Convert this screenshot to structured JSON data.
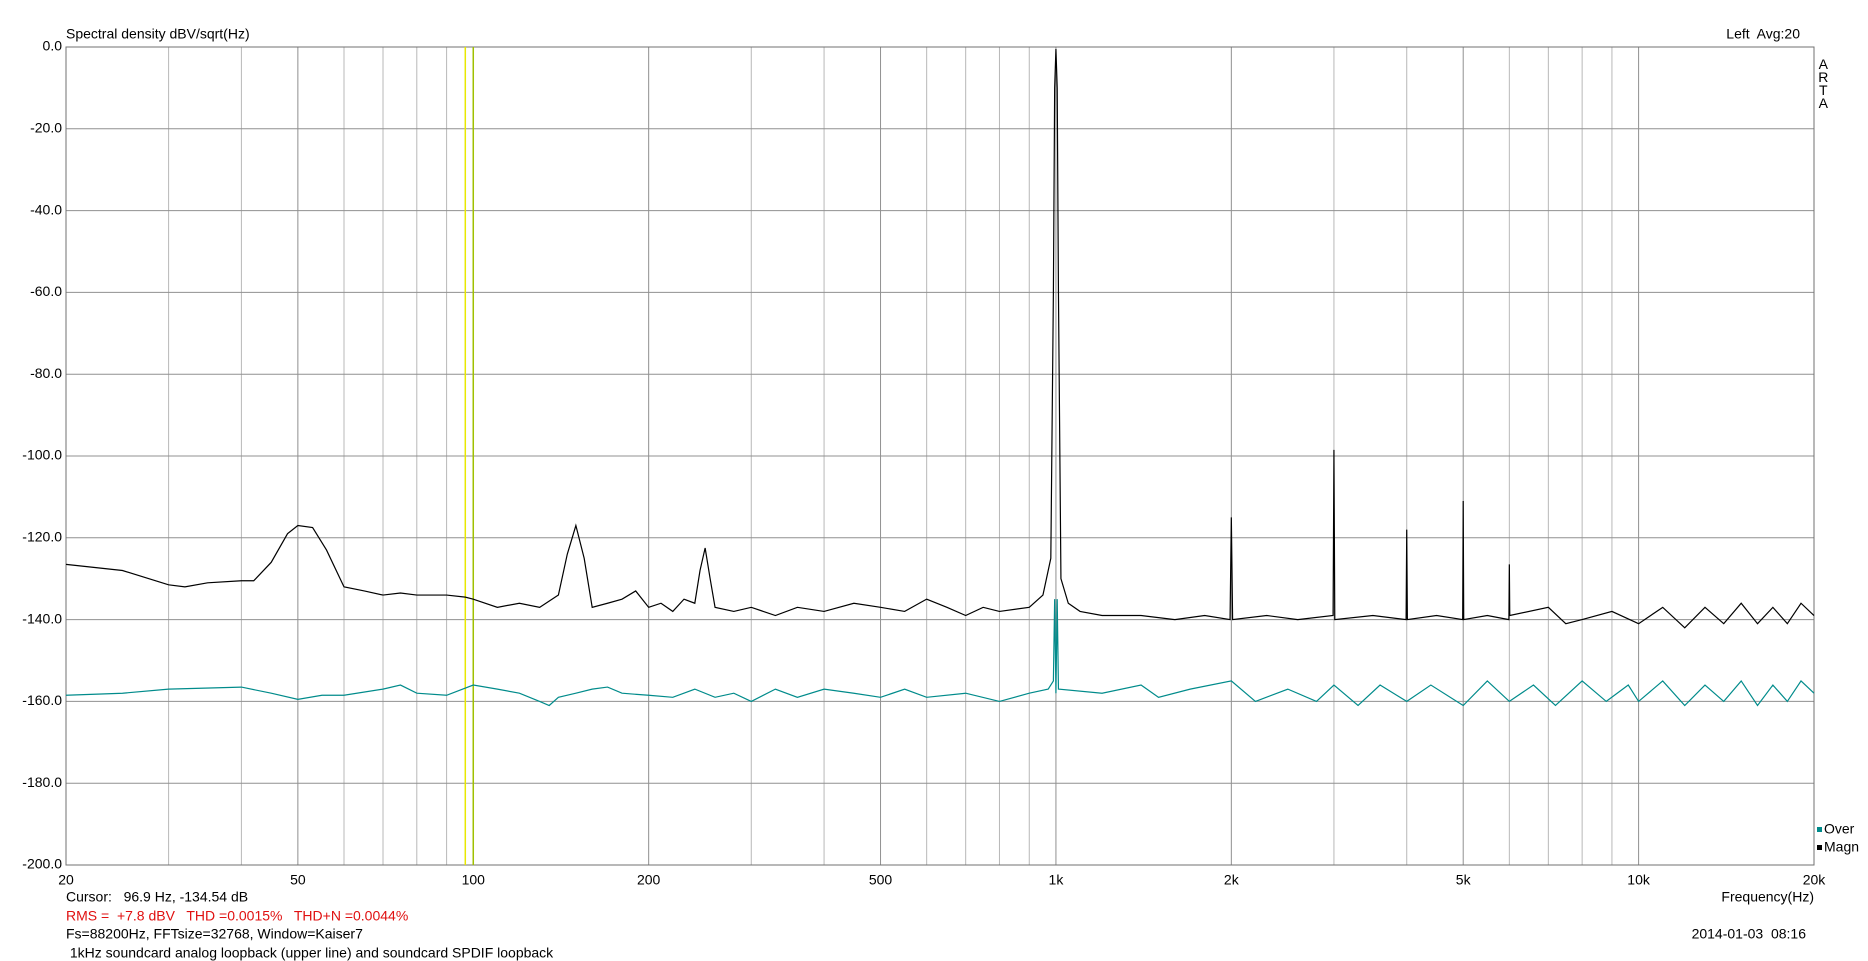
{
  "chart_data": {
    "type": "line",
    "title": "Spectral density dBV/sqrt(Hz)",
    "top_right": "Left  Avg:20",
    "brand": "ARTA",
    "x_label": "Frequency(Hz)",
    "log_x": true,
    "grid": true,
    "legend": "lower-right",
    "xlim": [
      20,
      20000
    ],
    "ylim": [
      -200,
      0
    ],
    "xticks": [
      20,
      50,
      100,
      200,
      500,
      {
        "value": 1000,
        "label": "1k"
      },
      {
        "value": 2000,
        "label": "2k"
      },
      {
        "value": 5000,
        "label": "5k"
      },
      {
        "value": 10000,
        "label": "10k"
      },
      {
        "value": 20000,
        "label": "20k"
      }
    ],
    "xgrid_minor": [
      30,
      40,
      60,
      70,
      80,
      90,
      300,
      400,
      600,
      700,
      800,
      900,
      3000,
      4000,
      6000,
      7000,
      8000,
      9000
    ],
    "yticks": [
      {
        "value": 0,
        "label": "0.0"
      },
      {
        "value": -20,
        "label": "-20.0"
      },
      {
        "value": -40,
        "label": "-40.0"
      },
      {
        "value": -60,
        "label": "-60.0"
      },
      {
        "value": -80,
        "label": "-80.0"
      },
      {
        "value": -100,
        "label": "-100.0"
      },
      {
        "value": -120,
        "label": "-120.0"
      },
      {
        "value": -140,
        "label": "-140.0"
      },
      {
        "value": -160,
        "label": "-160.0"
      },
      {
        "value": -180,
        "label": "-180.0"
      },
      {
        "value": -200,
        "label": "-200.0"
      }
    ],
    "cursor_lines": [
      {
        "x": 96.9,
        "color": "#e8e800"
      },
      {
        "x": 100,
        "color": "#a0c000"
      }
    ],
    "series": [
      {
        "name": "Over",
        "color": "#008b8b",
        "x": [
          20,
          25,
          30,
          40,
          45,
          50,
          55,
          60,
          70,
          75,
          80,
          90,
          100,
          110,
          120,
          130,
          135,
          140,
          150,
          160,
          170,
          180,
          200,
          220,
          240,
          260,
          280,
          300,
          330,
          360,
          400,
          450,
          500,
          550,
          600,
          700,
          800,
          900,
          970,
          990,
          995,
          1000,
          1005,
          1010,
          1200,
          1400,
          1500,
          1700,
          2000,
          2200,
          2500,
          2800,
          3000,
          3300,
          3600,
          4000,
          4400,
          5000,
          5500,
          6000,
          6600,
          7200,
          8000,
          8800,
          9600,
          10000,
          11000,
          12000,
          13000,
          14000,
          15000,
          16000,
          17000,
          18000,
          19000,
          20000
        ],
        "values": [
          -158.5,
          -158,
          -157,
          -156.5,
          -158,
          -159.5,
          -158.5,
          -158.5,
          -157,
          -156,
          -158,
          -158.5,
          -156,
          -157,
          -158,
          -160,
          -161,
          -159,
          -158,
          -157,
          -156.5,
          -158,
          -158.5,
          -159,
          -157,
          -159,
          -158,
          -160,
          -157,
          -159,
          -157,
          -158,
          -159,
          -157,
          -159,
          -158,
          -160,
          -158,
          -157,
          -155,
          -135,
          -158,
          -135,
          -157,
          -158,
          -156,
          -159,
          -157,
          -155,
          -160,
          -157,
          -160,
          -156,
          -161,
          -156,
          -160,
          -156,
          -161,
          -155,
          -160,
          -156,
          -161,
          -155,
          -160,
          -156,
          -160,
          -155,
          -161,
          -156,
          -160,
          -155,
          -161,
          -156,
          -160,
          -155,
          -158
        ]
      },
      {
        "name": "Magn",
        "color": "#000000",
        "x": [
          20,
          25,
          30,
          32,
          35,
          40,
          42,
          45,
          48,
          50,
          53,
          56,
          60,
          65,
          70,
          75,
          80,
          90,
          96.9,
          100,
          110,
          120,
          130,
          140,
          145,
          150,
          155,
          160,
          170,
          180,
          190,
          200,
          210,
          220,
          230,
          240,
          245,
          250,
          255,
          260,
          280,
          300,
          330,
          360,
          400,
          450,
          500,
          550,
          600,
          650,
          700,
          750,
          800,
          900,
          950,
          980,
          990,
          995,
          1000,
          1005,
          1010,
          1020,
          1050,
          1100,
          1200,
          1400,
          1600,
          1800,
          1990,
          2000,
          2010,
          2300,
          2600,
          2990,
          3000,
          3010,
          3500,
          3990,
          4000,
          4010,
          4500,
          4990,
          5000,
          5010,
          5500,
          5990,
          6000,
          6010,
          7000,
          7500,
          8000,
          9000,
          10000,
          11000,
          12000,
          13000,
          14000,
          15000,
          16000,
          17000,
          18000,
          19000,
          20000
        ],
        "values": [
          -126.5,
          -128,
          -131.5,
          -132,
          -131,
          -130.5,
          -130.5,
          -126,
          -119,
          -117,
          -117.5,
          -123,
          -132,
          -133,
          -134,
          -133.5,
          -134,
          -134,
          -134.5,
          -135,
          -137,
          -136,
          -137,
          -134,
          -124,
          -117,
          -125,
          -137,
          -136,
          -135,
          -133,
          -137,
          -136,
          -138,
          -135,
          -136,
          -128,
          -122.5,
          -130,
          -137,
          -138,
          -137,
          -139,
          -137,
          -138,
          -136,
          -137,
          -138,
          -135,
          -137,
          -139,
          -137,
          -138,
          -137,
          -134,
          -125,
          -60,
          -10,
          -0.5,
          -10,
          -60,
          -130,
          -136,
          -138,
          -139,
          -139,
          -140,
          -139,
          -140,
          -115,
          -140,
          -139,
          -140,
          -139,
          -98.5,
          -140,
          -139,
          -140,
          -118,
          -140,
          -139,
          -140,
          -111,
          -140,
          -139,
          -140,
          -126.5,
          -139,
          -137,
          -141,
          -140,
          -138,
          -141,
          -137,
          -142,
          -137,
          -141,
          -136,
          -141,
          -137,
          -141,
          -136,
          -139
        ]
      }
    ]
  },
  "footer": {
    "cursor": "Cursor:   96.9 Hz, -134.54 dB",
    "measurement": "RMS =  +7.8 dBV   THD =0.0015%   THD+N =0.0044%",
    "settings": "Fs=88200Hz, FFTsize=32768, Window=Kaiser7",
    "note": " 1kHz soundcard analog loopback (upper line) and soundcard SPDIF loopback",
    "timestamp": "2014-01-03  08:16"
  }
}
